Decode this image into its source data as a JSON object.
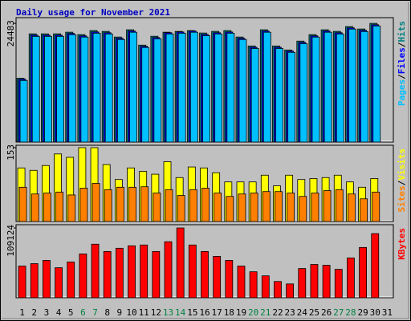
{
  "chart_data": [
    {
      "type": "bar",
      "title": "Daily usage for November 2021",
      "title_color": "#0000c0",
      "categories": [
        "1",
        "2",
        "3",
        "4",
        "5",
        "6",
        "7",
        "8",
        "9",
        "10",
        "11",
        "12",
        "13",
        "14",
        "15",
        "16",
        "17",
        "18",
        "19",
        "20",
        "21",
        "22",
        "23",
        "24",
        "25",
        "26",
        "27",
        "28",
        "29",
        "30",
        "31"
      ],
      "category_colors": [
        "#000000",
        "#000000",
        "#000000",
        "#000000",
        "#000000",
        "#008040",
        "#008040",
        "#000000",
        "#000000",
        "#000000",
        "#000000",
        "#000000",
        "#008040",
        "#008040",
        "#000000",
        "#000000",
        "#000000",
        "#000000",
        "#000000",
        "#008040",
        "#008040",
        "#000000",
        "#000000",
        "#000000",
        "#000000",
        "#000000",
        "#008040",
        "#008040",
        "#000000",
        "#000000",
        "#000000"
      ],
      "legend_separator": "/",
      "series": [
        {
          "name": "Pages",
          "color": "#00c0ff",
          "values": [
            12700,
            21800,
            21800,
            21800,
            22150,
            21650,
            22450,
            22300,
            21150,
            22650,
            19500,
            21300,
            22300,
            22450,
            22650,
            21950,
            22300,
            22450,
            21150,
            19300,
            22650,
            19300,
            18500,
            20300,
            21650,
            22650,
            22300,
            23300,
            22800,
            23950,
            null
          ]
        },
        {
          "name": "Files",
          "color": "#0000ff",
          "values": [
            12950,
            22050,
            22050,
            22050,
            22400,
            21900,
            22700,
            22550,
            21400,
            22900,
            19750,
            21550,
            22550,
            22700,
            22900,
            22200,
            22550,
            22700,
            21400,
            19550,
            22900,
            19550,
            18750,
            20550,
            21900,
            22900,
            22550,
            23550,
            23050,
            24200,
            null
          ]
        },
        {
          "name": "Hits",
          "color": "#008080",
          "values": [
            13160,
            22320,
            22320,
            22320,
            22660,
            22160,
            22990,
            22820,
            21660,
            23160,
            19990,
            21820,
            22660,
            22820,
            22990,
            22490,
            22820,
            22990,
            21660,
            19820,
            23160,
            19820,
            18990,
            20820,
            22160,
            23160,
            22820,
            23820,
            23320,
            24483,
            null
          ]
        }
      ],
      "ylim": [
        0,
        25660
      ],
      "yticks": [
        24483
      ]
    },
    {
      "type": "bar",
      "legend_separator": "/",
      "series": [
        {
          "name": "Sites",
          "color": "#ff8000",
          "values": [
            71,
            57,
            59,
            61,
            55,
            69,
            79,
            66,
            71,
            71,
            72,
            59,
            66,
            54,
            66,
            69,
            59,
            52,
            57,
            59,
            62,
            62,
            59,
            52,
            59,
            64,
            66,
            57,
            47,
            61,
            null
          ]
        },
        {
          "name": "Visits",
          "color": "#ffff00",
          "values": [
            111,
            106,
            116,
            140,
            133,
            153,
            153,
            118,
            87,
            111,
            104,
            98,
            124,
            91,
            113,
            111,
            101,
            82,
            82,
            82,
            96,
            74,
            96,
            87,
            89,
            91,
            96,
            82,
            71,
            89,
            null
          ]
        }
      ],
      "ylim": [
        0,
        158
      ],
      "yticks": [
        153
      ]
    },
    {
      "type": "bar",
      "series": [
        {
          "name": "KBytes",
          "color": "#ff0000",
          "values": [
            49490,
            53290,
            58370,
            46950,
            55830,
            68520,
            83750,
            72330,
            77400,
            81210,
            82480,
            72330,
            87550,
            109124,
            82480,
            72330,
            64710,
            58370,
            49490,
            40600,
            34260,
            25380,
            21570,
            45680,
            52020,
            50760,
            44410,
            62180,
            78670,
            100240,
            null
          ]
        }
      ],
      "ylim": [
        0,
        114200
      ],
      "yticks": [
        109124
      ]
    }
  ]
}
